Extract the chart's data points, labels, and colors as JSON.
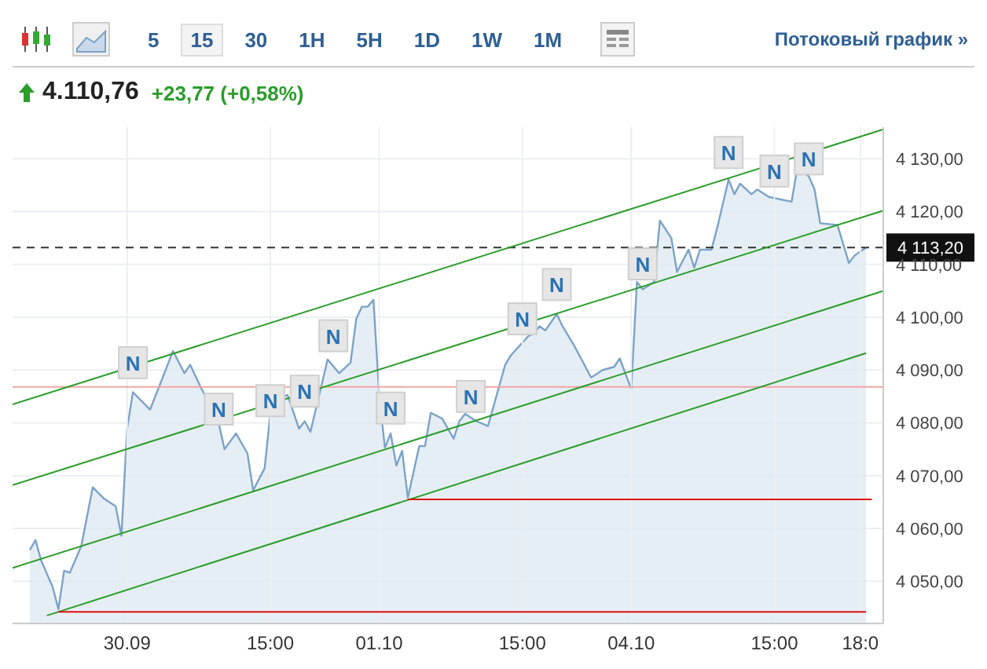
{
  "chart_data": {
    "type": "area",
    "title": "4.110,76",
    "subtitle": "+23,77 (+0,58%)",
    "annotations": [
      "5",
      "15",
      "30",
      "1H",
      "5H",
      "1D",
      "1W",
      "1M",
      "Потоковый график »"
    ],
    "categories": [
      null,
      null,
      null,
      null,
      null,
      null,
      null,
      null,
      null,
      null,
      null,
      null,
      null,
      null,
      null,
      null,
      null,
      null,
      null,
      null,
      "30.09",
      null,
      null,
      null,
      null,
      null,
      null,
      null,
      null,
      null,
      null,
      null,
      null,
      null,
      null,
      null,
      null,
      null,
      null,
      null,
      null,
      null,
      null,
      null,
      null,
      "15:00",
      null,
      null,
      null,
      null,
      null,
      null,
      null,
      null,
      null,
      null,
      null,
      null,
      null,
      null,
      null,
      null,
      null,
      null,
      "01.10",
      null,
      null,
      null,
      null,
      null,
      null,
      null,
      null,
      null,
      null,
      null,
      null,
      null,
      null,
      null,
      null,
      null,
      null,
      null,
      null,
      null,
      null,
      null,
      null,
      "15:00",
      null,
      null,
      null,
      null,
      null,
      null,
      null,
      null,
      null,
      null,
      null,
      null,
      null,
      null,
      null,
      null,
      null,
      null,
      "04.10",
      null,
      null,
      null,
      null,
      null,
      null,
      null,
      null,
      null,
      null,
      null,
      null,
      null,
      null,
      null,
      null,
      null,
      null,
      null,
      null,
      null,
      null,
      null,
      null,
      "15:00",
      null,
      null,
      null,
      null,
      null,
      null,
      null,
      null,
      null,
      null,
      null,
      null,
      null,
      null,
      "18:0",
      null,
      null,
      null,
      null
    ],
    "series": [
      {
        "color": "#7ba3c8",
        "values": [
          null,
          null,
          null,
          4055.9,
          4057.8,
          4053.9,
          null,
          4048.9,
          4044.7,
          4052.0,
          4051.6,
          null,
          4056.7,
          null,
          4067.8,
          null,
          4065.6,
          null,
          4064.2,
          4058.6,
          4078.9,
          4085.8,
          null,
          null,
          4082.5,
          null,
          4088.0,
          null,
          4093.6,
          null,
          4089.4,
          4091.0,
          null,
          4086.4,
          4084.4,
          null,
          4079.8,
          4075.0,
          null,
          4078.0,
          null,
          4074.2,
          4067.2,
          null,
          4071.4,
          4081.7,
          4084.4,
          null,
          4085.3,
          null,
          4078.9,
          4080.3,
          4078.3,
          null,
          null,
          4092.0,
          null,
          4089.4,
          null,
          4091.4,
          4099.7,
          4102.0,
          4102.0,
          4103.3,
          4085.3,
          4075.3,
          4078.0,
          4071.9,
          4074.7,
          4065.8,
          null,
          4075.6,
          4075.6,
          4081.9,
          null,
          4080.8,
          null,
          4077.0,
          4080.3,
          4081.7,
          null,
          4080.3,
          null,
          4079.4,
          null,
          null,
          4091.0,
          4092.8,
          null,
          null,
          4096.4,
          4096.9,
          4098.3,
          4097.5,
          null,
          4100.6,
          4098.3,
          null,
          4094.7,
          null,
          null,
          4088.6,
          null,
          4090.0,
          null,
          4090.6,
          4092.2,
          null,
          4086.4,
          4106.7,
          4105.3,
          null,
          4106.7,
          4118.3,
          null,
          4115.0,
          4108.6,
          null,
          4112.8,
          4109.4,
          4112.8,
          null,
          4112.8,
          4116.9,
          null,
          4126.1,
          4123.3,
          4125.3,
          null,
          4123.3,
          4124.2,
          null,
          4122.8,
          null,
          null,
          null,
          4121.9,
          4128.3,
          null,
          4126.7,
          4124.2,
          4117.8,
          null,
          null,
          4117.5,
          null,
          4110.3,
          4111.7,
          null,
          4113.2,
          null,
          null,
          null
        ]
      },
      {
        "type": "line",
        "color": "#2a9d2a",
        "values": [
          4083.5,
          null,
          null,
          null,
          null,
          null,
          null,
          null,
          null,
          null,
          null,
          null,
          null,
          null,
          null,
          null,
          null,
          null,
          null,
          null,
          null,
          null,
          null,
          null,
          null,
          null,
          null,
          null,
          null,
          null,
          null,
          null,
          null,
          null,
          null,
          null,
          null,
          null,
          null,
          null,
          null,
          null,
          null,
          null,
          null,
          null,
          null,
          null,
          null,
          null,
          null,
          null,
          null,
          null,
          null,
          null,
          null,
          null,
          null,
          null,
          null,
          null,
          null,
          null,
          null,
          null,
          null,
          null,
          null,
          null,
          null,
          null,
          null,
          null,
          null,
          null,
          null,
          null,
          null,
          null,
          null,
          null,
          null,
          null,
          null,
          null,
          null,
          null,
          null,
          null,
          null,
          null,
          null,
          null,
          null,
          null,
          null,
          null,
          null,
          null,
          null,
          null,
          null,
          null,
          null,
          null,
          null,
          null,
          null,
          null,
          null,
          null,
          null,
          null,
          null,
          null,
          null,
          null,
          null,
          null,
          null,
          null,
          null,
          null,
          null,
          null,
          null,
          null,
          null,
          null,
          null,
          null,
          null,
          null,
          null,
          null,
          null,
          null,
          null,
          null,
          null,
          null,
          null,
          null,
          null,
          null,
          null,
          null,
          null,
          null,
          null,
          null,
          4135.6
        ]
      },
      {
        "type": "line",
        "color": "#2a9d2a",
        "values": [
          4068.2,
          null,
          null,
          null,
          null,
          null,
          null,
          null,
          null,
          null,
          null,
          null,
          null,
          null,
          null,
          null,
          null,
          null,
          null,
          null,
          null,
          null,
          null,
          null,
          null,
          null,
          null,
          null,
          null,
          null,
          null,
          null,
          null,
          null,
          null,
          null,
          null,
          null,
          null,
          null,
          null,
          null,
          null,
          null,
          null,
          null,
          null,
          null,
          null,
          null,
          null,
          null,
          null,
          null,
          null,
          null,
          null,
          null,
          null,
          null,
          null,
          null,
          null,
          null,
          null,
          null,
          null,
          null,
          null,
          null,
          null,
          null,
          null,
          null,
          null,
          null,
          null,
          null,
          null,
          null,
          null,
          null,
          null,
          null,
          null,
          null,
          null,
          null,
          null,
          null,
          null,
          null,
          null,
          null,
          null,
          null,
          null,
          null,
          null,
          null,
          null,
          null,
          null,
          null,
          null,
          null,
          null,
          null,
          null,
          null,
          null,
          null,
          null,
          null,
          null,
          null,
          null,
          null,
          null,
          null,
          null,
          null,
          null,
          null,
          null,
          null,
          null,
          null,
          null,
          null,
          null,
          null,
          null,
          null,
          null,
          null,
          null,
          null,
          null,
          null,
          null,
          null,
          null,
          null,
          null,
          null,
          null,
          null,
          null,
          null,
          null,
          null,
          4120.2
        ]
      },
      {
        "type": "line",
        "color": "#2a9d2a",
        "values": [
          4052.5,
          null,
          null,
          null,
          null,
          null,
          null,
          null,
          null,
          null,
          null,
          null,
          null,
          null,
          null,
          null,
          null,
          null,
          null,
          null,
          null,
          null,
          null,
          null,
          null,
          null,
          null,
          null,
          null,
          null,
          null,
          null,
          null,
          null,
          null,
          null,
          null,
          null,
          null,
          null,
          null,
          null,
          null,
          null,
          null,
          null,
          null,
          null,
          null,
          null,
          null,
          null,
          null,
          null,
          null,
          null,
          null,
          null,
          null,
          null,
          null,
          null,
          null,
          null,
          null,
          null,
          null,
          null,
          null,
          null,
          null,
          null,
          null,
          null,
          null,
          null,
          null,
          null,
          null,
          null,
          null,
          null,
          null,
          null,
          null,
          null,
          null,
          null,
          null,
          null,
          null,
          null,
          null,
          null,
          null,
          null,
          null,
          null,
          null,
          null,
          null,
          null,
          null,
          null,
          null,
          null,
          null,
          null,
          null,
          null,
          null,
          null,
          null,
          null,
          null,
          null,
          null,
          null,
          null,
          null,
          null,
          null,
          null,
          null,
          null,
          null,
          null,
          null,
          null,
          null,
          null,
          null,
          null,
          null,
          null,
          null,
          null,
          null,
          null,
          null,
          null,
          null,
          null,
          null,
          null,
          null,
          null,
          null,
          null,
          null,
          null,
          null,
          4105.0
        ]
      },
      {
        "type": "line",
        "color": "#2a9d2a",
        "values": [
          null,
          null,
          null,
          null,
          null,
          null,
          4043.5,
          null,
          null,
          null,
          null,
          null,
          null,
          null,
          null,
          null,
          null,
          null,
          null,
          null,
          null,
          null,
          null,
          null,
          null,
          null,
          null,
          null,
          null,
          null,
          null,
          null,
          null,
          null,
          null,
          null,
          null,
          null,
          null,
          null,
          null,
          null,
          null,
          null,
          null,
          null,
          null,
          null,
          null,
          null,
          null,
          null,
          null,
          null,
          null,
          null,
          null,
          null,
          null,
          null,
          null,
          null,
          null,
          null,
          null,
          null,
          null,
          null,
          null,
          null,
          null,
          null,
          null,
          null,
          null,
          null,
          null,
          null,
          null,
          null,
          null,
          null,
          null,
          null,
          null,
          null,
          null,
          null,
          null,
          null,
          null,
          null,
          null,
          null,
          null,
          null,
          null,
          null,
          null,
          null,
          null,
          null,
          null,
          null,
          null,
          null,
          null,
          null,
          null,
          null,
          null,
          null,
          null,
          null,
          null,
          null,
          null,
          null,
          null,
          null,
          null,
          null,
          null,
          null,
          null,
          null,
          null,
          null,
          null,
          null,
          null,
          null,
          null,
          null,
          null,
          null,
          null,
          null,
          null,
          null,
          null,
          null,
          null,
          null,
          null,
          null,
          null,
          null,
          null,
          4093.2,
          null,
          null,
          null
        ]
      },
      {
        "type": "line",
        "color": "#dd1111",
        "values": [
          null,
          null,
          null,
          null,
          null,
          null,
          null,
          null,
          null,
          null,
          null,
          null,
          null,
          null,
          null,
          null,
          null,
          null,
          null,
          null,
          null,
          null,
          null,
          null,
          null,
          null,
          null,
          null,
          null,
          null,
          null,
          null,
          null,
          null,
          null,
          null,
          null,
          null,
          null,
          null,
          null,
          null,
          null,
          null,
          null,
          null,
          null,
          null,
          null,
          null,
          null,
          null,
          null,
          null,
          null,
          null,
          null,
          null,
          null,
          null,
          null,
          null,
          null,
          null,
          null,
          null,
          null,
          null,
          null,
          4065.5,
          null,
          null,
          null,
          null,
          null,
          null,
          null,
          null,
          null,
          null,
          null,
          null,
          null,
          null,
          null,
          null,
          null,
          null,
          null,
          null,
          null,
          null,
          null,
          null,
          null,
          null,
          null,
          null,
          null,
          null,
          null,
          null,
          null,
          null,
          null,
          null,
          null,
          null,
          null,
          null,
          null,
          null,
          null,
          null,
          null,
          null,
          null,
          null,
          null,
          null,
          null,
          null,
          null,
          null,
          null,
          null,
          null,
          null,
          null,
          null,
          null,
          null,
          null,
          null,
          null,
          null,
          null,
          null,
          null,
          null,
          null,
          null,
          null,
          null,
          null,
          null,
          null,
          null,
          null,
          null,
          4065.5,
          null,
          null
        ]
      },
      {
        "type": "line",
        "color": "#dd1111",
        "values": [
          null,
          null,
          null,
          null,
          null,
          null,
          null,
          null,
          4044.2,
          null,
          null,
          null,
          null,
          null,
          null,
          null,
          null,
          null,
          null,
          null,
          null,
          null,
          null,
          null,
          null,
          null,
          null,
          null,
          null,
          null,
          null,
          null,
          null,
          null,
          null,
          null,
          null,
          null,
          null,
          null,
          null,
          null,
          null,
          null,
          null,
          null,
          null,
          null,
          null,
          null,
          null,
          null,
          null,
          null,
          null,
          null,
          null,
          null,
          null,
          null,
          null,
          null,
          null,
          null,
          null,
          null,
          null,
          null,
          null,
          null,
          null,
          null,
          null,
          null,
          null,
          null,
          null,
          null,
          null,
          null,
          null,
          null,
          null,
          null,
          null,
          null,
          null,
          null,
          null,
          null,
          null,
          null,
          null,
          null,
          null,
          null,
          null,
          null,
          null,
          null,
          null,
          null,
          null,
          null,
          null,
          null,
          null,
          null,
          null,
          null,
          null,
          null,
          null,
          null,
          null,
          null,
          null,
          null,
          null,
          null,
          null,
          null,
          null,
          null,
          null,
          null,
          null,
          null,
          null,
          null,
          null,
          null,
          null,
          null,
          null,
          null,
          null,
          null,
          null,
          null,
          null,
          null,
          null,
          null,
          null,
          null,
          null,
          null,
          null,
          4044.2,
          null,
          null,
          null
        ]
      },
      {
        "type": "scatter",
        "color": "#e6e6e6",
        "marker": "square",
        "values": [
          null,
          null,
          null,
          null,
          null,
          null,
          null,
          null,
          null,
          null,
          null,
          null,
          null,
          null,
          null,
          null,
          null,
          null,
          null,
          null,
          null,
          4091.4,
          null,
          null,
          null,
          null,
          null,
          null,
          null,
          null,
          null,
          null,
          null,
          null,
          null,
          null,
          4082.6,
          null,
          null,
          null,
          null,
          null,
          null,
          null,
          null,
          4084.2,
          null,
          null,
          null,
          null,
          null,
          4086.0,
          null,
          null,
          null,
          null,
          4096.5,
          null,
          null,
          null,
          null,
          null,
          null,
          null,
          null,
          null,
          4082.8,
          null,
          null,
          null,
          null,
          null,
          null,
          null,
          null,
          null,
          null,
          null,
          null,
          null,
          4085.0,
          null,
          null,
          null,
          null,
          null,
          null,
          null,
          null,
          4099.7,
          null,
          null,
          null,
          null,
          null,
          4106.2,
          null,
          null,
          null,
          null,
          null,
          null,
          null,
          null,
          null,
          null,
          null,
          null,
          null,
          null,
          4110.1,
          null,
          null,
          null,
          null,
          null,
          null,
          null,
          null,
          null,
          null,
          null,
          null,
          null,
          null,
          4131.2,
          null,
          null,
          null,
          null,
          null,
          null,
          null,
          4127.7,
          null,
          null,
          null,
          null,
          null,
          4130.0,
          null,
          null,
          null,
          null,
          null,
          null,
          null,
          null,
          null,
          null,
          null,
          null,
          null
        ],
        "value_labels": [
          null,
          null,
          null,
          null,
          null,
          null,
          null,
          null,
          null,
          null,
          null,
          null,
          null,
          null,
          null,
          null,
          null,
          null,
          null,
          null,
          null,
          "N",
          null,
          null,
          null,
          null,
          null,
          null,
          null,
          null,
          null,
          null,
          null,
          null,
          null,
          null,
          "N",
          null,
          null,
          null,
          null,
          null,
          null,
          null,
          null,
          "N",
          null,
          null,
          null,
          null,
          null,
          "N",
          null,
          null,
          null,
          null,
          "N",
          null,
          null,
          null,
          null,
          null,
          null,
          null,
          null,
          null,
          "N",
          null,
          null,
          null,
          null,
          null,
          null,
          null,
          null,
          null,
          null,
          null,
          null,
          null,
          "N",
          null,
          null,
          null,
          null,
          null,
          null,
          null,
          null,
          "N",
          null,
          null,
          null,
          null,
          null,
          "N",
          null,
          null,
          null,
          null,
          null,
          null,
          null,
          null,
          null,
          null,
          null,
          null,
          null,
          null,
          "N",
          null,
          null,
          null,
          null,
          null,
          null,
          null,
          null,
          null,
          null,
          null,
          null,
          null,
          null,
          "N",
          null,
          null,
          null,
          null,
          null,
          null,
          null,
          "N",
          null,
          null,
          null,
          null,
          null,
          "N",
          null,
          null,
          null,
          null,
          null,
          null,
          null,
          null,
          null,
          null,
          null,
          null,
          null
        ]
      }
    ],
    "ylim": [
      4042,
      4136
    ],
    "yticks": [
      {
        "value": 4050,
        "label": "4 050,00"
      },
      {
        "value": 4060,
        "label": "4 060,00"
      },
      {
        "value": 4070,
        "label": "4 070,00"
      },
      {
        "value": 4080,
        "label": "4 080,00"
      },
      {
        "value": 4090,
        "label": "4 090,00"
      },
      {
        "value": 4100,
        "label": "4 100,00"
      },
      {
        "value": 4110,
        "label": "4 110,00"
      },
      {
        "value": 4120,
        "label": "4 120,00"
      },
      {
        "value": 4130,
        "label": "4 130,00"
      }
    ],
    "ref_lines": [
      {
        "axis": "y",
        "value": 4113.2,
        "label": "4 113,20",
        "color": "#333333",
        "line_style": "dashed"
      },
      {
        "axis": "y",
        "value": 4086.8,
        "color": "#f2a5a5",
        "line_style": "solid"
      }
    ],
    "grid": true,
    "marker": "none",
    "line_style": "solid"
  }
}
